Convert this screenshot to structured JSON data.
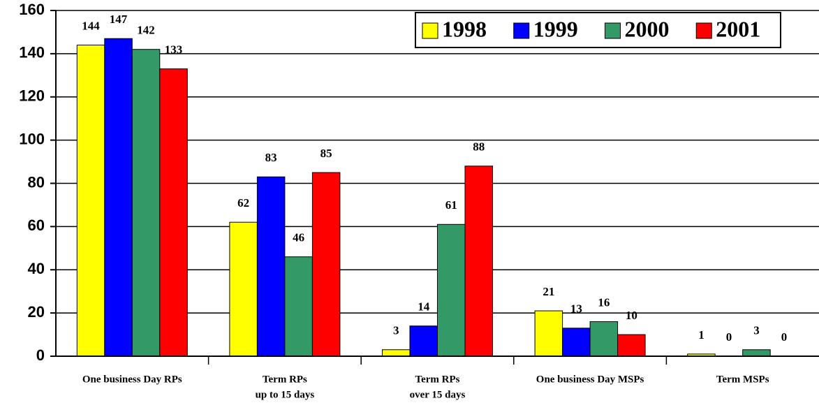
{
  "chart_data": {
    "type": "bar",
    "categories": [
      [
        "One business Day RPs"
      ],
      [
        "Term RPs",
        "up to 15 days"
      ],
      [
        "Term RPs",
        "over 15 days"
      ],
      [
        "One business Day MSPs"
      ],
      [
        "Term MSPs"
      ]
    ],
    "series": [
      {
        "name": "1998",
        "color": "#ffff00",
        "values": [
          144,
          62,
          3,
          21,
          1
        ]
      },
      {
        "name": "1999",
        "color": "#0000ff",
        "values": [
          147,
          83,
          14,
          13,
          0
        ]
      },
      {
        "name": "2000",
        "color": "#339966",
        "values": [
          142,
          46,
          61,
          16,
          3
        ]
      },
      {
        "name": "2001",
        "color": "#ff0000",
        "values": [
          133,
          85,
          88,
          10,
          0
        ]
      }
    ],
    "ylim": [
      0,
      160
    ],
    "yticks": [
      0,
      20,
      40,
      60,
      80,
      100,
      120,
      140,
      160
    ],
    "grid": true,
    "legend": "top-right"
  }
}
